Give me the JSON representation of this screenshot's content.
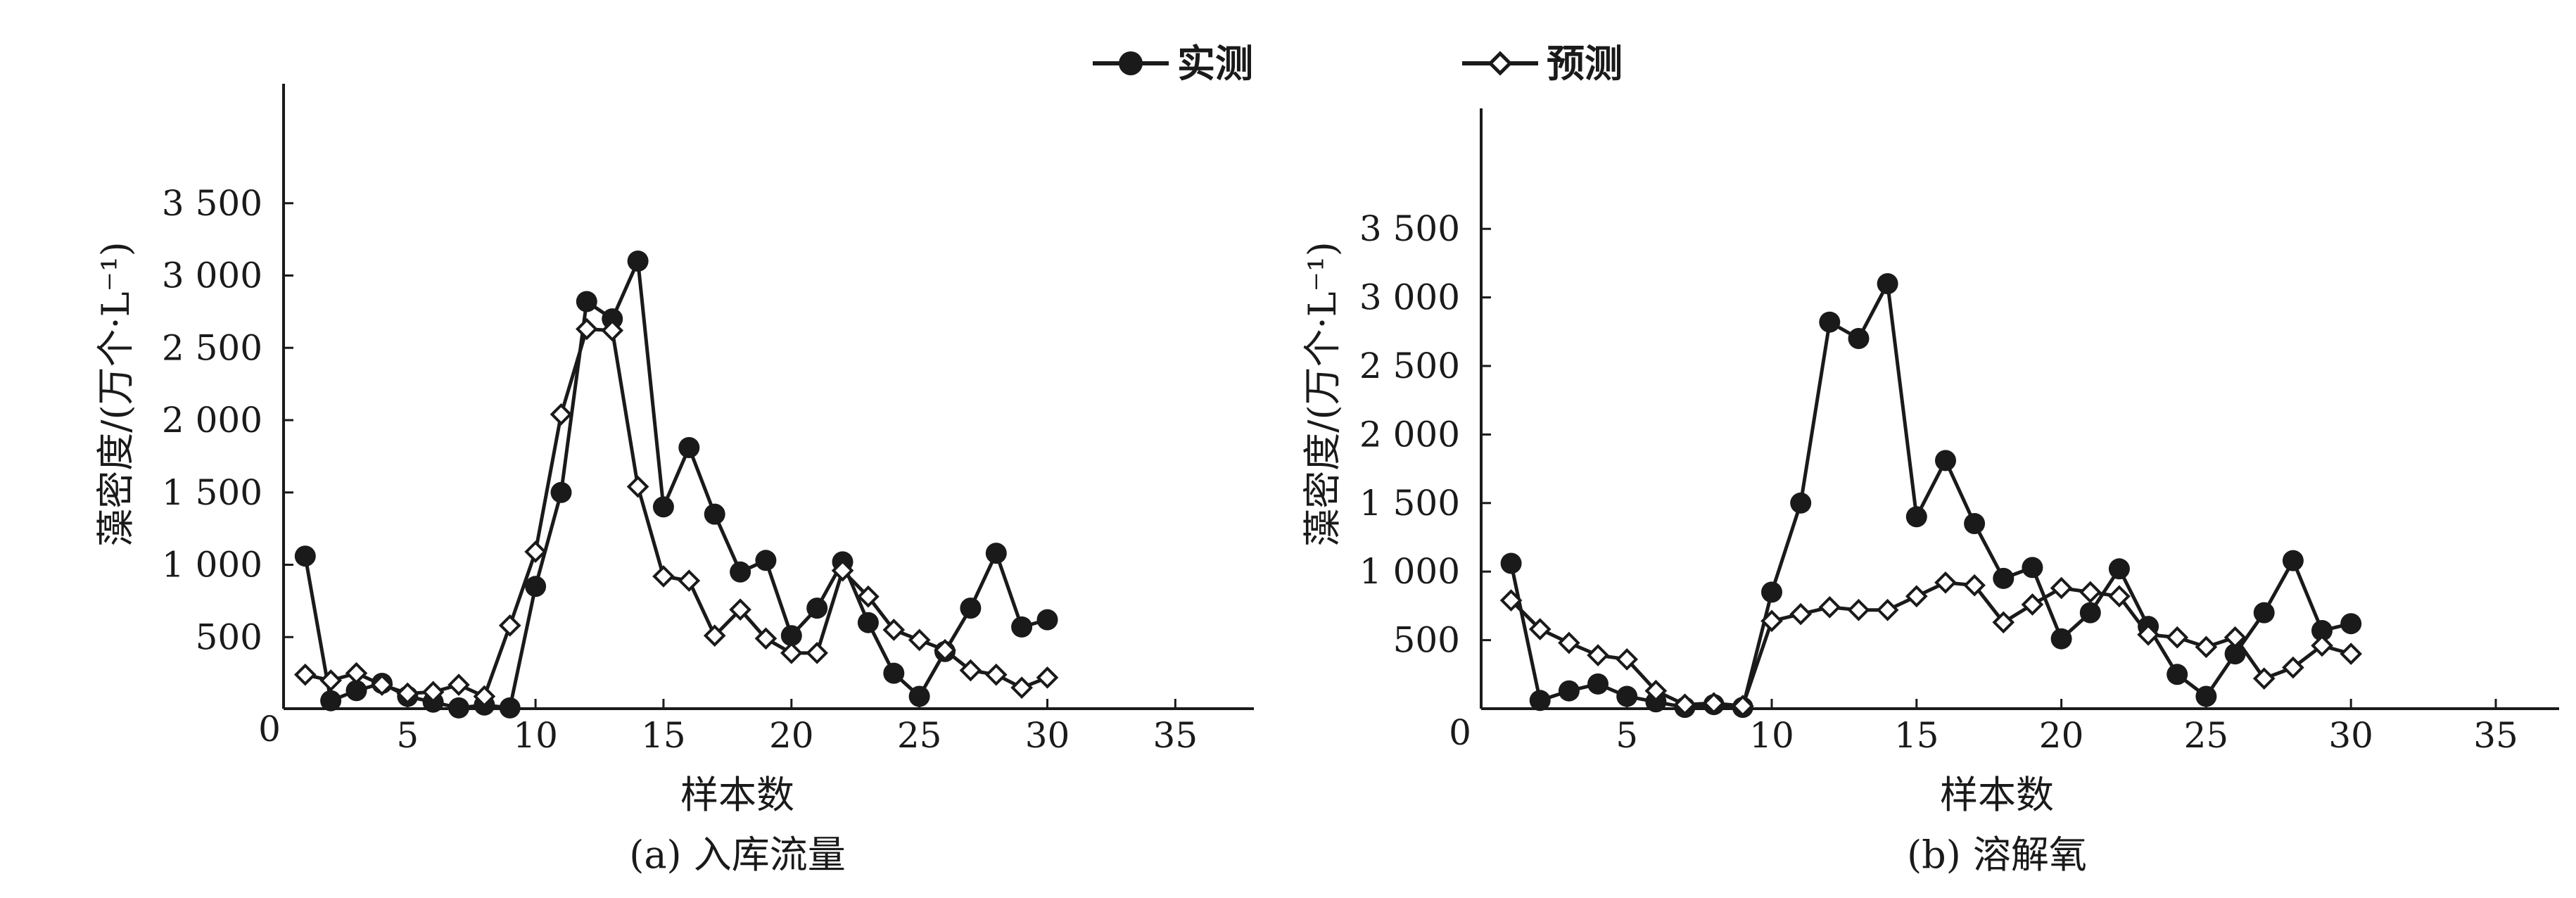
{
  "legend": {
    "measured_label": "实测",
    "predicted_label": "预测"
  },
  "chart_data": [
    {
      "type": "line",
      "caption": "(a) 入库流量",
      "xlabel": "样本数",
      "ylabel": "藻密度/(万个·L⁻¹)",
      "origin_label": "0",
      "xlim": [
        0,
        37
      ],
      "ylim": [
        0,
        3700
      ],
      "xticks": [
        5,
        10,
        15,
        20,
        25,
        30,
        35
      ],
      "xtick_labels": [
        "5",
        "10",
        "15",
        "20",
        "25",
        "30",
        "35"
      ],
      "yticks": [
        500,
        1000,
        1500,
        2000,
        2500,
        3000,
        3500
      ],
      "ytick_labels": [
        "500",
        "1 000",
        "1 500",
        "2 000",
        "2 500",
        "3 000",
        "3 500"
      ],
      "x": [
        1,
        2,
        3,
        4,
        5,
        6,
        7,
        8,
        9,
        10,
        11,
        12,
        13,
        14,
        15,
        16,
        17,
        18,
        19,
        20,
        21,
        22,
        23,
        24,
        25,
        26,
        27,
        28,
        29,
        30
      ],
      "series": [
        {
          "name": "实测",
          "marker": "filled-circle",
          "values": [
            1060,
            60,
            130,
            180,
            90,
            50,
            10,
            30,
            10,
            850,
            1500,
            2820,
            2700,
            3100,
            1400,
            1810,
            1350,
            950,
            1030,
            510,
            700,
            1020,
            600,
            250,
            90,
            400,
            700,
            1080,
            570,
            620
          ]
        },
        {
          "name": "预测",
          "marker": "open-diamond",
          "values": [
            240,
            200,
            250,
            170,
            110,
            120,
            170,
            90,
            580,
            1090,
            2040,
            2630,
            2620,
            1540,
            920,
            890,
            510,
            690,
            490,
            390,
            390,
            960,
            780,
            550,
            480,
            410,
            270,
            240,
            150,
            220
          ]
        }
      ]
    },
    {
      "type": "line",
      "caption": "(b) 溶解氧",
      "xlabel": "样本数",
      "ylabel": "藻密度/(万个·L⁻¹)",
      "origin_label": "0",
      "xlim": [
        0,
        37
      ],
      "ylim": [
        0,
        3700
      ],
      "xticks": [
        5,
        10,
        15,
        20,
        25,
        30,
        35
      ],
      "xtick_labels": [
        "5",
        "10",
        "15",
        "20",
        "25",
        "30",
        "35"
      ],
      "yticks": [
        500,
        1000,
        1500,
        2000,
        2500,
        3000,
        3500
      ],
      "ytick_labels": [
        "500",
        "1 000",
        "1 500",
        "2 000",
        "2 500",
        "3 000",
        "3 500"
      ],
      "x": [
        1,
        2,
        3,
        4,
        5,
        6,
        7,
        8,
        9,
        10,
        11,
        12,
        13,
        14,
        15,
        16,
        17,
        18,
        19,
        20,
        21,
        22,
        23,
        24,
        25,
        26,
        27,
        28,
        29,
        30
      ],
      "series": [
        {
          "name": "实测",
          "marker": "filled-circle",
          "values": [
            1060,
            60,
            130,
            180,
            90,
            50,
            10,
            30,
            10,
            850,
            1500,
            2820,
            2700,
            3100,
            1400,
            1810,
            1350,
            950,
            1030,
            510,
            700,
            1020,
            600,
            250,
            90,
            400,
            700,
            1080,
            570,
            620
          ]
        },
        {
          "name": "预测",
          "marker": "open-diamond",
          "values": [
            790,
            580,
            480,
            390,
            360,
            130,
            30,
            40,
            20,
            640,
            690,
            740,
            720,
            720,
            820,
            920,
            900,
            630,
            760,
            880,
            850,
            820,
            540,
            520,
            450,
            520,
            220,
            300,
            460,
            400
          ]
        }
      ]
    }
  ]
}
